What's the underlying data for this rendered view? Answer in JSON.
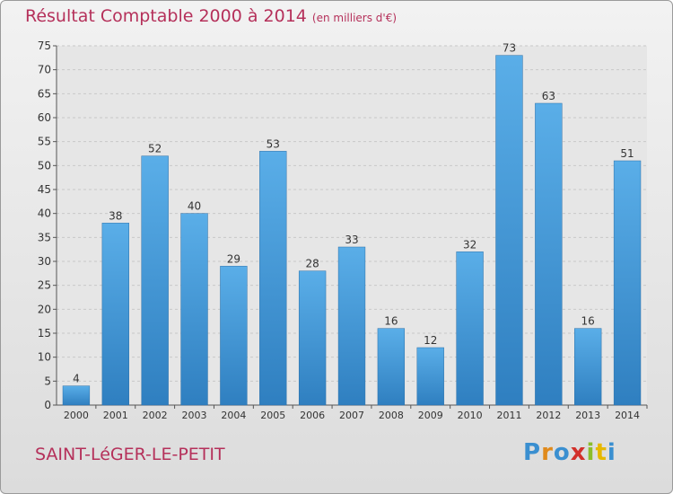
{
  "chart_data": {
    "type": "bar",
    "title": "Résultat Comptable 2000 à 2014",
    "subtitle": "(en milliers d'€)",
    "xlabel": "",
    "ylabel": "",
    "categories": [
      "2000",
      "2001",
      "2002",
      "2003",
      "2004",
      "2005",
      "2006",
      "2007",
      "2008",
      "2009",
      "2010",
      "2011",
      "2012",
      "2013",
      "2014"
    ],
    "values": [
      4,
      38,
      52,
      40,
      29,
      53,
      28,
      33,
      16,
      12,
      32,
      73,
      63,
      16,
      51
    ],
    "ylim": [
      0,
      75
    ],
    "yticks": [
      0,
      5,
      10,
      15,
      20,
      25,
      30,
      35,
      40,
      45,
      50,
      55,
      60,
      65,
      70,
      75
    ],
    "grid": "horizontal",
    "bar_color": "#4a9ad8"
  },
  "footer": {
    "commune": "SAINT-LéGER-LE-PETIT",
    "logo_letters": [
      "P",
      "r",
      "o",
      "x",
      "i",
      "t",
      "i"
    ],
    "logo_colors": [
      "#3a8fd0",
      "#e08a1c",
      "#3a8fd0",
      "#d2302a",
      "#8bbd2b",
      "#e6b800",
      "#3a8fd0"
    ]
  },
  "colors": {
    "title": "#b5305a",
    "grid": "#c8c8c8",
    "axis": "#555555"
  }
}
